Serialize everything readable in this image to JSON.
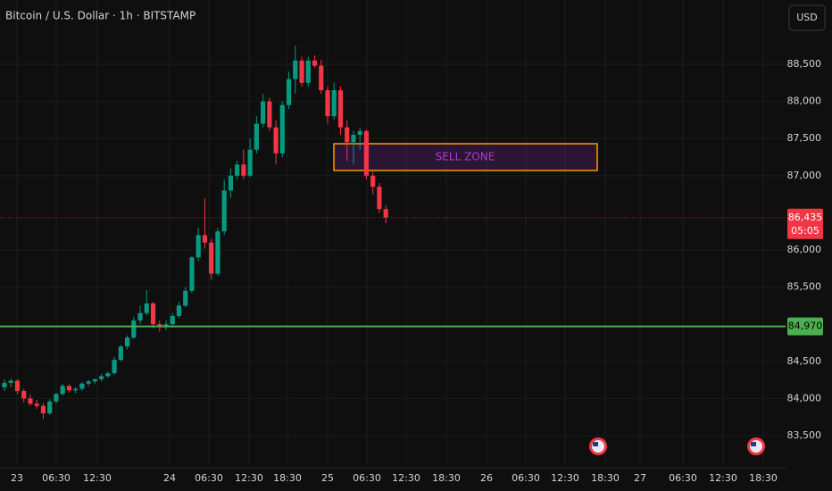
{
  "chart_data": {
    "type": "candlestick",
    "title": "Bitcoin / U.S. Dollar · 1h · BITSTAMP",
    "currency": "USD",
    "up_color": "#089981",
    "down_color": "#f23645",
    "grid": true,
    "ylim": [
      83115,
      89365
    ],
    "yticks": [
      {
        "value": 83500,
        "label": "83,500"
      },
      {
        "value": 84000,
        "label": "84,000"
      },
      {
        "value": 84500,
        "label": "84,500"
      },
      {
        "value": 85500,
        "label": "85,500"
      },
      {
        "value": 86000,
        "label": "86,000"
      },
      {
        "value": 87000,
        "label": "87,000"
      },
      {
        "value": 87500,
        "label": "87,500"
      },
      {
        "value": 88000,
        "label": "88,000"
      },
      {
        "value": 88500,
        "label": "88,500"
      }
    ],
    "x_labels": [
      "23",
      "06:30",
      "12:30",
      "24",
      "06:30",
      "12:30",
      "18:30",
      "25",
      "06:30",
      "12:30",
      "18:30",
      "26",
      "06:30",
      "12:30",
      "18:30",
      "27",
      "06:30",
      "12:30",
      "18:30"
    ],
    "open": [
      84150,
      84210,
      84240,
      84100,
      84000,
      83930,
      83900,
      83800,
      83960,
      84060,
      84170,
      84110,
      84130,
      84200,
      84230,
      84260,
      84300,
      84340,
      84520,
      84700,
      84820,
      85050,
      85150,
      85280,
      85000,
      84960,
      85000,
      85110,
      85250,
      85450,
      85900,
      86200,
      86100,
      85680,
      86250,
      86800,
      87000,
      87150,
      87000,
      87350,
      87700,
      88000,
      87650,
      87300,
      87950,
      88300,
      88550,
      88250,
      88550,
      88480,
      88150,
      87800,
      88150,
      87650,
      87450,
      87550,
      87600,
      87000,
      86850,
      86550
    ],
    "high": [
      84260,
      84270,
      84260,
      84130,
      84050,
      83980,
      83940,
      83990,
      84080,
      84200,
      84190,
      84150,
      84220,
      84250,
      84270,
      84330,
      84360,
      84560,
      84720,
      84850,
      85100,
      85250,
      85460,
      85300,
      85050,
      85050,
      85150,
      85300,
      85500,
      85920,
      86300,
      86690,
      86150,
      86300,
      86950,
      87100,
      87200,
      87350,
      87500,
      87800,
      88100,
      88050,
      87750,
      88000,
      88400,
      88750,
      88600,
      88600,
      88620,
      88560,
      88200,
      88250,
      88200,
      87750,
      87600,
      87650,
      87620,
      87050,
      86900,
      86600
    ],
    "low": [
      84100,
      84150,
      84060,
      83950,
      83900,
      83860,
      83720,
      83780,
      83930,
      84040,
      84080,
      84070,
      84100,
      84170,
      84200,
      84230,
      84280,
      84320,
      84500,
      84660,
      84800,
      85000,
      85120,
      84950,
      84900,
      84920,
      84980,
      85080,
      85230,
      85420,
      85850,
      86020,
      85600,
      85650,
      86200,
      86700,
      86950,
      86950,
      86980,
      87300,
      87650,
      87600,
      87150,
      87250,
      87900,
      88100,
      88200,
      88200,
      88450,
      88100,
      87700,
      87750,
      87550,
      87200,
      87150,
      87350,
      86950,
      86750,
      86500,
      86360
    ],
    "close": [
      84210,
      84240,
      84100,
      84000,
      83930,
      83900,
      83800,
      83960,
      84060,
      84170,
      84110,
      84130,
      84200,
      84230,
      84260,
      84300,
      84340,
      84520,
      84700,
      84820,
      85050,
      85150,
      85280,
      85000,
      84960,
      85000,
      85110,
      85250,
      85450,
      85900,
      86200,
      86100,
      85680,
      86250,
      86800,
      87000,
      87150,
      87000,
      87350,
      87700,
      88000,
      87650,
      87300,
      87950,
      88300,
      88550,
      88250,
      88550,
      88480,
      88150,
      87800,
      88150,
      87650,
      87450,
      87550,
      87600,
      87000,
      86850,
      86550,
      86435
    ],
    "last_price": {
      "value": 86435,
      "label": "86,435",
      "countdown": "05:05"
    },
    "level": {
      "value": 84970,
      "label": "84,970",
      "color": "#4caf50"
    },
    "sell_zone": {
      "label": "SELL ZONE",
      "top": 87430,
      "bottom": 87070
    }
  }
}
